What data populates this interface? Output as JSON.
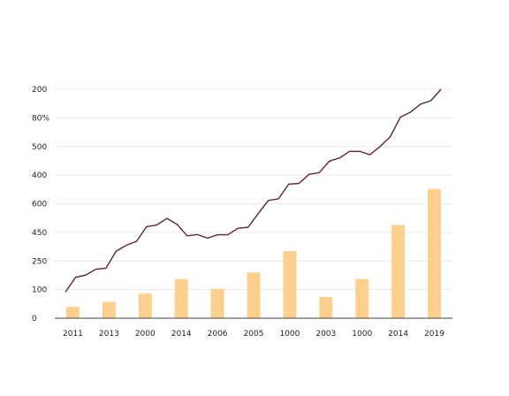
{
  "chart_data": {
    "type": "bar+line",
    "title": "",
    "xlabel": "",
    "ylabel": "",
    "grid": true,
    "y_tick_labels": [
      "0",
      "100",
      "250",
      "450",
      "600",
      "400",
      "500",
      "80%",
      "200"
    ],
    "x_tick_labels": [
      "2011",
      "2013",
      "2000",
      "2014",
      "2006",
      "2005",
      "1000",
      "2003",
      "1000",
      "2014",
      "2019"
    ],
    "bar_series": {
      "values": [
        35,
        50,
        75,
        120,
        90,
        140,
        205,
        65,
        120,
        285,
        395
      ],
      "color": "#fccf8d"
    },
    "line_series": {
      "values": [
        80,
        125,
        132,
        150,
        153,
        205,
        223,
        235,
        280,
        285,
        305,
        287,
        252,
        256,
        245,
        255,
        255,
        275,
        278,
        320,
        360,
        365,
        410,
        412,
        440,
        445,
        480,
        490,
        510,
        510,
        500,
        525,
        555,
        615,
        630,
        655,
        665,
        700
      ],
      "color": "#5e2435"
    },
    "ylim": [
      0,
      700
    ]
  }
}
